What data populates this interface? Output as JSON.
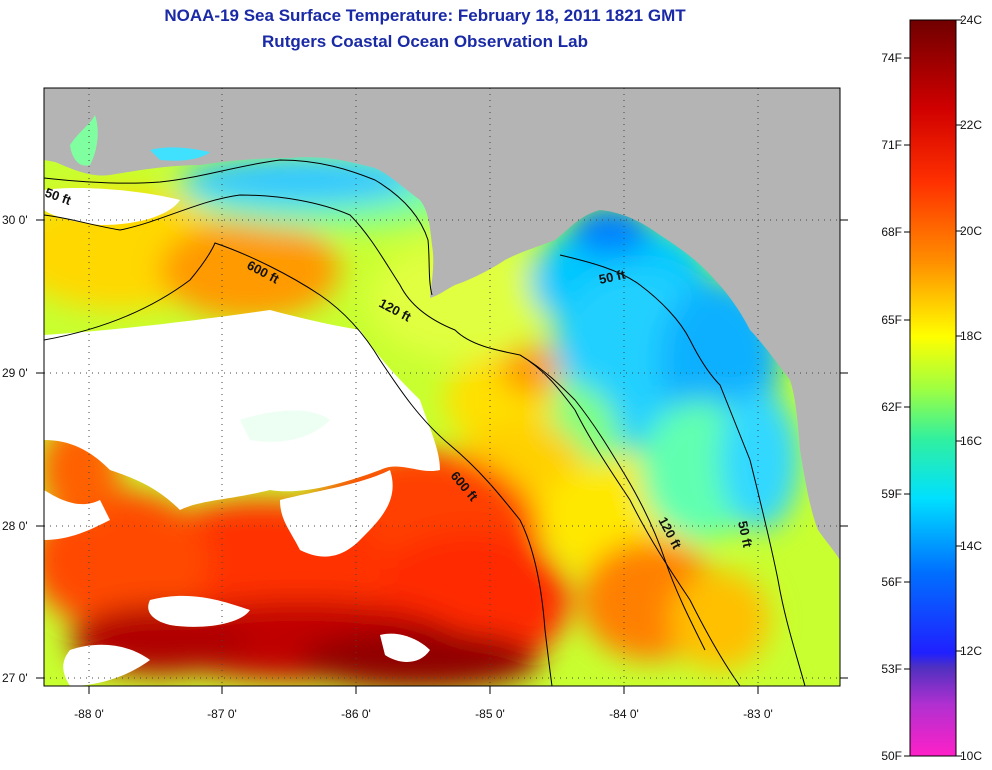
{
  "title": {
    "line1": "NOAA-19 Sea Surface Temperature:  February 18, 2011 1821 GMT",
    "line2": "Rutgers Coastal Ocean Observation Lab"
  },
  "map": {
    "lon_ticks": [
      "-88 0'",
      "-87 0'",
      "-86 0'",
      "-85 0'",
      "-84 0'",
      "-83 0'"
    ],
    "lat_ticks": [
      "30 0'",
      "29 0'",
      "28 0'",
      "27 0'"
    ],
    "land_color": "#b4b4b4",
    "cloud_color": "#ffffff",
    "contour_labels": [
      "50 ft",
      "600 ft",
      "120 ft",
      "50 ft",
      "600 ft",
      "120 ft",
      "50 ft"
    ]
  },
  "colorbar": {
    "celsius_labels": [
      "24C",
      "22C",
      "20C",
      "18C",
      "16C",
      "14C",
      "12C",
      "10C"
    ],
    "fahrenheit_labels": [
      "74F",
      "71F",
      "68F",
      "65F",
      "62F",
      "59F",
      "56F",
      "53F",
      "50F"
    ],
    "colors": [
      "#ff20c8",
      "#8030d0",
      "#2020ff",
      "#0080ff",
      "#00e0ff",
      "#40ff80",
      "#ffff00",
      "#ff9000",
      "#ff2000",
      "#c00000",
      "#780000"
    ]
  }
}
